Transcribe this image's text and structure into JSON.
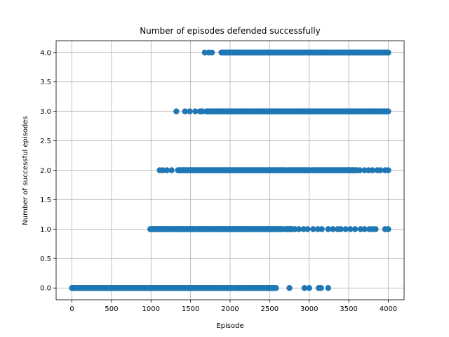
{
  "chart_data": {
    "type": "scatter",
    "title": "Number of episodes defended successfully",
    "xlabel": "Episode",
    "ylabel": "Number of successful episodes",
    "xlim": [
      -200,
      4200
    ],
    "ylim": [
      -0.2,
      4.2
    ],
    "xticks": [
      0,
      500,
      1000,
      1500,
      2000,
      2500,
      3000,
      3500,
      4000
    ],
    "xtick_labels": [
      "0",
      "500",
      "1000",
      "1500",
      "2000",
      "2500",
      "3000",
      "3500",
      "4000"
    ],
    "yticks": [
      0.0,
      0.5,
      1.0,
      1.5,
      2.0,
      2.5,
      3.0,
      3.5,
      4.0
    ],
    "ytick_labels": [
      "0.0",
      "0.5",
      "1.0",
      "1.5",
      "2.0",
      "2.5",
      "3.0",
      "3.5",
      "4.0"
    ],
    "grid": true,
    "marker_color": "#1f77b4",
    "series": [
      {
        "values_y": 0,
        "segments": [
          [
            0,
            1840
          ],
          [
            1880,
            2000
          ],
          [
            2050,
            2200
          ],
          [
            2240,
            2400
          ],
          [
            2450,
            2560
          ]
        ],
        "points": [
          1860,
          2020,
          2220,
          2420,
          2580,
          2750,
          2940,
          3000,
          3120,
          3150,
          3240
        ]
      },
      {
        "values_y": 1,
        "segments": [
          [
            990,
            1560
          ],
          [
            1590,
            2320
          ],
          [
            2340,
            2500
          ],
          [
            2520,
            2640
          ],
          [
            2700,
            2780
          ]
        ],
        "points": [
          2660,
          2820,
          2870,
          2930,
          2980,
          3050,
          3110,
          3160,
          3240,
          3300,
          3360,
          3400,
          3460,
          3520,
          3580,
          3650,
          3700,
          3760,
          3800,
          3840,
          3960,
          4000
        ]
      },
      {
        "values_y": 2,
        "segments": [
          [
            1340,
            1560
          ],
          [
            1580,
            1980
          ],
          [
            2000,
            2700
          ],
          [
            2730,
            3000
          ],
          [
            3030,
            3300
          ],
          [
            3320,
            3600
          ]
        ],
        "points": [
          1110,
          1150,
          1200,
          1260,
          3640,
          3700,
          3750,
          3800,
          3860,
          3900,
          3960,
          4000
        ]
      },
      {
        "values_y": 3,
        "segments": [
          [
            1620,
            1650
          ],
          [
            1700,
            1980
          ],
          [
            2000,
            4000
          ]
        ],
        "points": [
          1320,
          1430,
          1490,
          1560
        ]
      },
      {
        "values_y": 4,
        "segments": [
          [
            1890,
            2120
          ],
          [
            2140,
            2200
          ],
          [
            2220,
            4000
          ]
        ],
        "points": [
          1680,
          1730,
          1770
        ]
      }
    ]
  }
}
